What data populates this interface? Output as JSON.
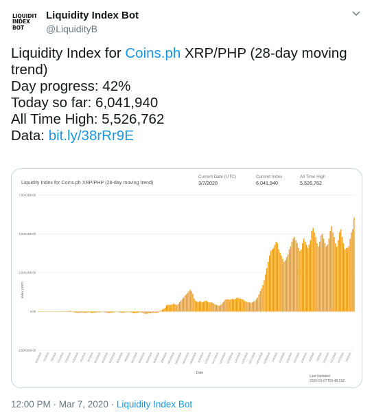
{
  "tweet": {
    "avatar_lines": [
      "LIQUIDITY",
      "INDEX",
      "BOT"
    ],
    "display_name": "Liquidity Index Bot",
    "handle": "@LiquidityB",
    "text": {
      "line1_prefix": "Liquidity Index for ",
      "line1_link": "Coins.ph",
      "line1_suffix": " XRP/PHP (28-day moving",
      "line2": "trend)",
      "line3": "Day progress: 42%",
      "line4": "Today so far: 6,041,940",
      "line5": "All Time High: 5,526,762",
      "line6_prefix": "Data: ",
      "line6_link": "bit.ly/38rRr9E"
    },
    "timestamp": "12:00 PM · Mar 7, 2020",
    "separator": " · ",
    "source": "Liquidity Index Bot"
  },
  "chart_data": {
    "type": "bar",
    "title": "Liquidity Index for Coins.ph XRP/PHP (28-day moving trend)",
    "info": [
      {
        "label": "Current Date (UTC)",
        "value": "3/7/2020"
      },
      {
        "label": "Current Index",
        "value": "6,041,940"
      },
      {
        "label": "All Time High",
        "value": "5,526,762"
      }
    ],
    "xlabel": "Date",
    "ylabel": "Index (XRP)",
    "ylim": [
      -2500000,
      7500000
    ],
    "yticks": [
      {
        "value": 7500000,
        "label": "7,500,000.00"
      },
      {
        "value": 5000000,
        "label": "5,000,000.00"
      },
      {
        "value": 2500000,
        "label": "2,500,000.00"
      },
      {
        "value": 0,
        "label": "0.00"
      },
      {
        "value": -2500000,
        "label": "-2,500,000.00"
      }
    ],
    "bar_color": "#f0a020",
    "last_updated_label": "Last Updated",
    "last_updated_value": "2020-03-07T09:48:23Z",
    "values": [
      10000,
      12000,
      8000,
      15000,
      10000,
      9000,
      11000,
      13000,
      9000,
      12000,
      14000,
      10000,
      16000,
      12000,
      18000,
      20000,
      15000,
      22000,
      25000,
      28000,
      30000,
      25000,
      20000,
      35000,
      60000,
      40000,
      20000,
      -50000,
      -60000,
      -80000,
      -100000,
      -90000,
      -70000,
      -60000,
      -80000,
      -90000,
      -80000,
      -70000,
      -60000,
      -50000,
      -90000,
      -100000,
      -80000,
      -70000,
      -60000,
      -50000,
      -60000,
      -40000,
      -30000,
      -20000,
      -40000,
      -60000,
      -80000,
      -100000,
      -90000,
      -80000,
      -70000,
      -50000,
      -40000,
      -30000,
      -20000,
      -40000,
      -60000,
      -80000,
      -90000,
      -70000,
      -50000,
      -40000,
      -30000,
      -40000,
      -60000,
      -80000,
      -100000,
      -120000,
      -100000,
      -90000,
      -70000,
      -50000,
      -60000,
      -80000,
      -120000,
      -150000,
      -140000,
      -130000,
      -120000,
      -110000,
      -100000,
      -80000,
      -90000,
      -100000,
      -80000,
      -60000,
      40000,
      80000,
      120000,
      180000,
      250000,
      400000,
      450000,
      430000,
      420000,
      450000,
      500000,
      480000,
      450000,
      430000,
      500000,
      600000,
      700000,
      800000,
      900000,
      1000000,
      1100000,
      1200000,
      1300000,
      1400000,
      1300000,
      1150000,
      850000,
      700000,
      650000,
      600000,
      680000,
      650000,
      600000,
      620000,
      680000,
      700000,
      650000,
      600000,
      580000,
      600000,
      560000,
      500000,
      450000,
      420000,
      400000,
      380000,
      420000,
      500000,
      600000,
      700000,
      780000,
      800000,
      780000,
      760000,
      800000,
      820000,
      780000,
      820000,
      860000,
      900000,
      850000,
      820000,
      800000,
      780000,
      700000,
      650000,
      620000,
      600000,
      580000,
      560000,
      600000,
      650000,
      700000,
      800000,
      900000,
      1100000,
      1300000,
      1500000,
      1700000,
      2000000,
      2400000,
      2800000,
      3200000,
      3600000,
      3900000,
      4000000,
      4100000,
      4300000,
      4500000,
      4400000,
      4000000,
      3800000,
      3600000,
      3400000,
      3200000,
      3300000,
      3500000,
      3700000,
      4000000,
      4200000,
      4500000,
      4700000,
      4800000,
      4600000,
      4400000,
      4100000,
      3900000,
      4000000,
      4400000,
      4700000,
      4500000,
      4300000,
      4100000,
      4300000,
      4600000,
      5200000,
      5400000,
      5100000,
      4800000,
      4400000,
      4200000,
      4500000,
      4900000,
      5000000,
      4700000,
      4400000,
      4200000,
      4300000,
      4700000,
      5200000,
      5500000,
      5100000,
      4800000,
      4400000,
      4200000,
      4600000,
      5100000,
      5300000,
      4800000,
      4400000,
      4000000,
      4100000,
      4100000,
      4200000,
      4700000,
      5100000,
      5300000,
      6041940
    ],
    "xtick_labels": [
      "6/26/2019",
      "7/2/2019",
      "7/8/2019",
      "7/14/2019",
      "7/20/2019",
      "7/26/2019",
      "8/1/2019",
      "8/7/2019",
      "8/13/2019",
      "8/19/2019",
      "8/25/2019",
      "8/31/2019",
      "9/6/2019",
      "9/12/2019",
      "9/18/2019",
      "9/24/2019",
      "9/30/2019",
      "10/6/2019",
      "10/12/2019",
      "10/18/2019",
      "10/24/2019",
      "10/30/2019",
      "11/5/2019",
      "11/11/2019",
      "11/17/2019",
      "11/23/2019",
      "11/29/2019",
      "12/5/2019",
      "12/11/2019",
      "12/17/2019",
      "12/23/2019",
      "12/29/2019",
      "1/4/2020",
      "1/10/2020",
      "1/16/2020",
      "1/22/2020",
      "1/28/2020",
      "2/3/2020",
      "2/9/2020",
      "2/15/2020",
      "2/21/2020",
      "2/27/2020",
      "3/4/2020"
    ]
  }
}
